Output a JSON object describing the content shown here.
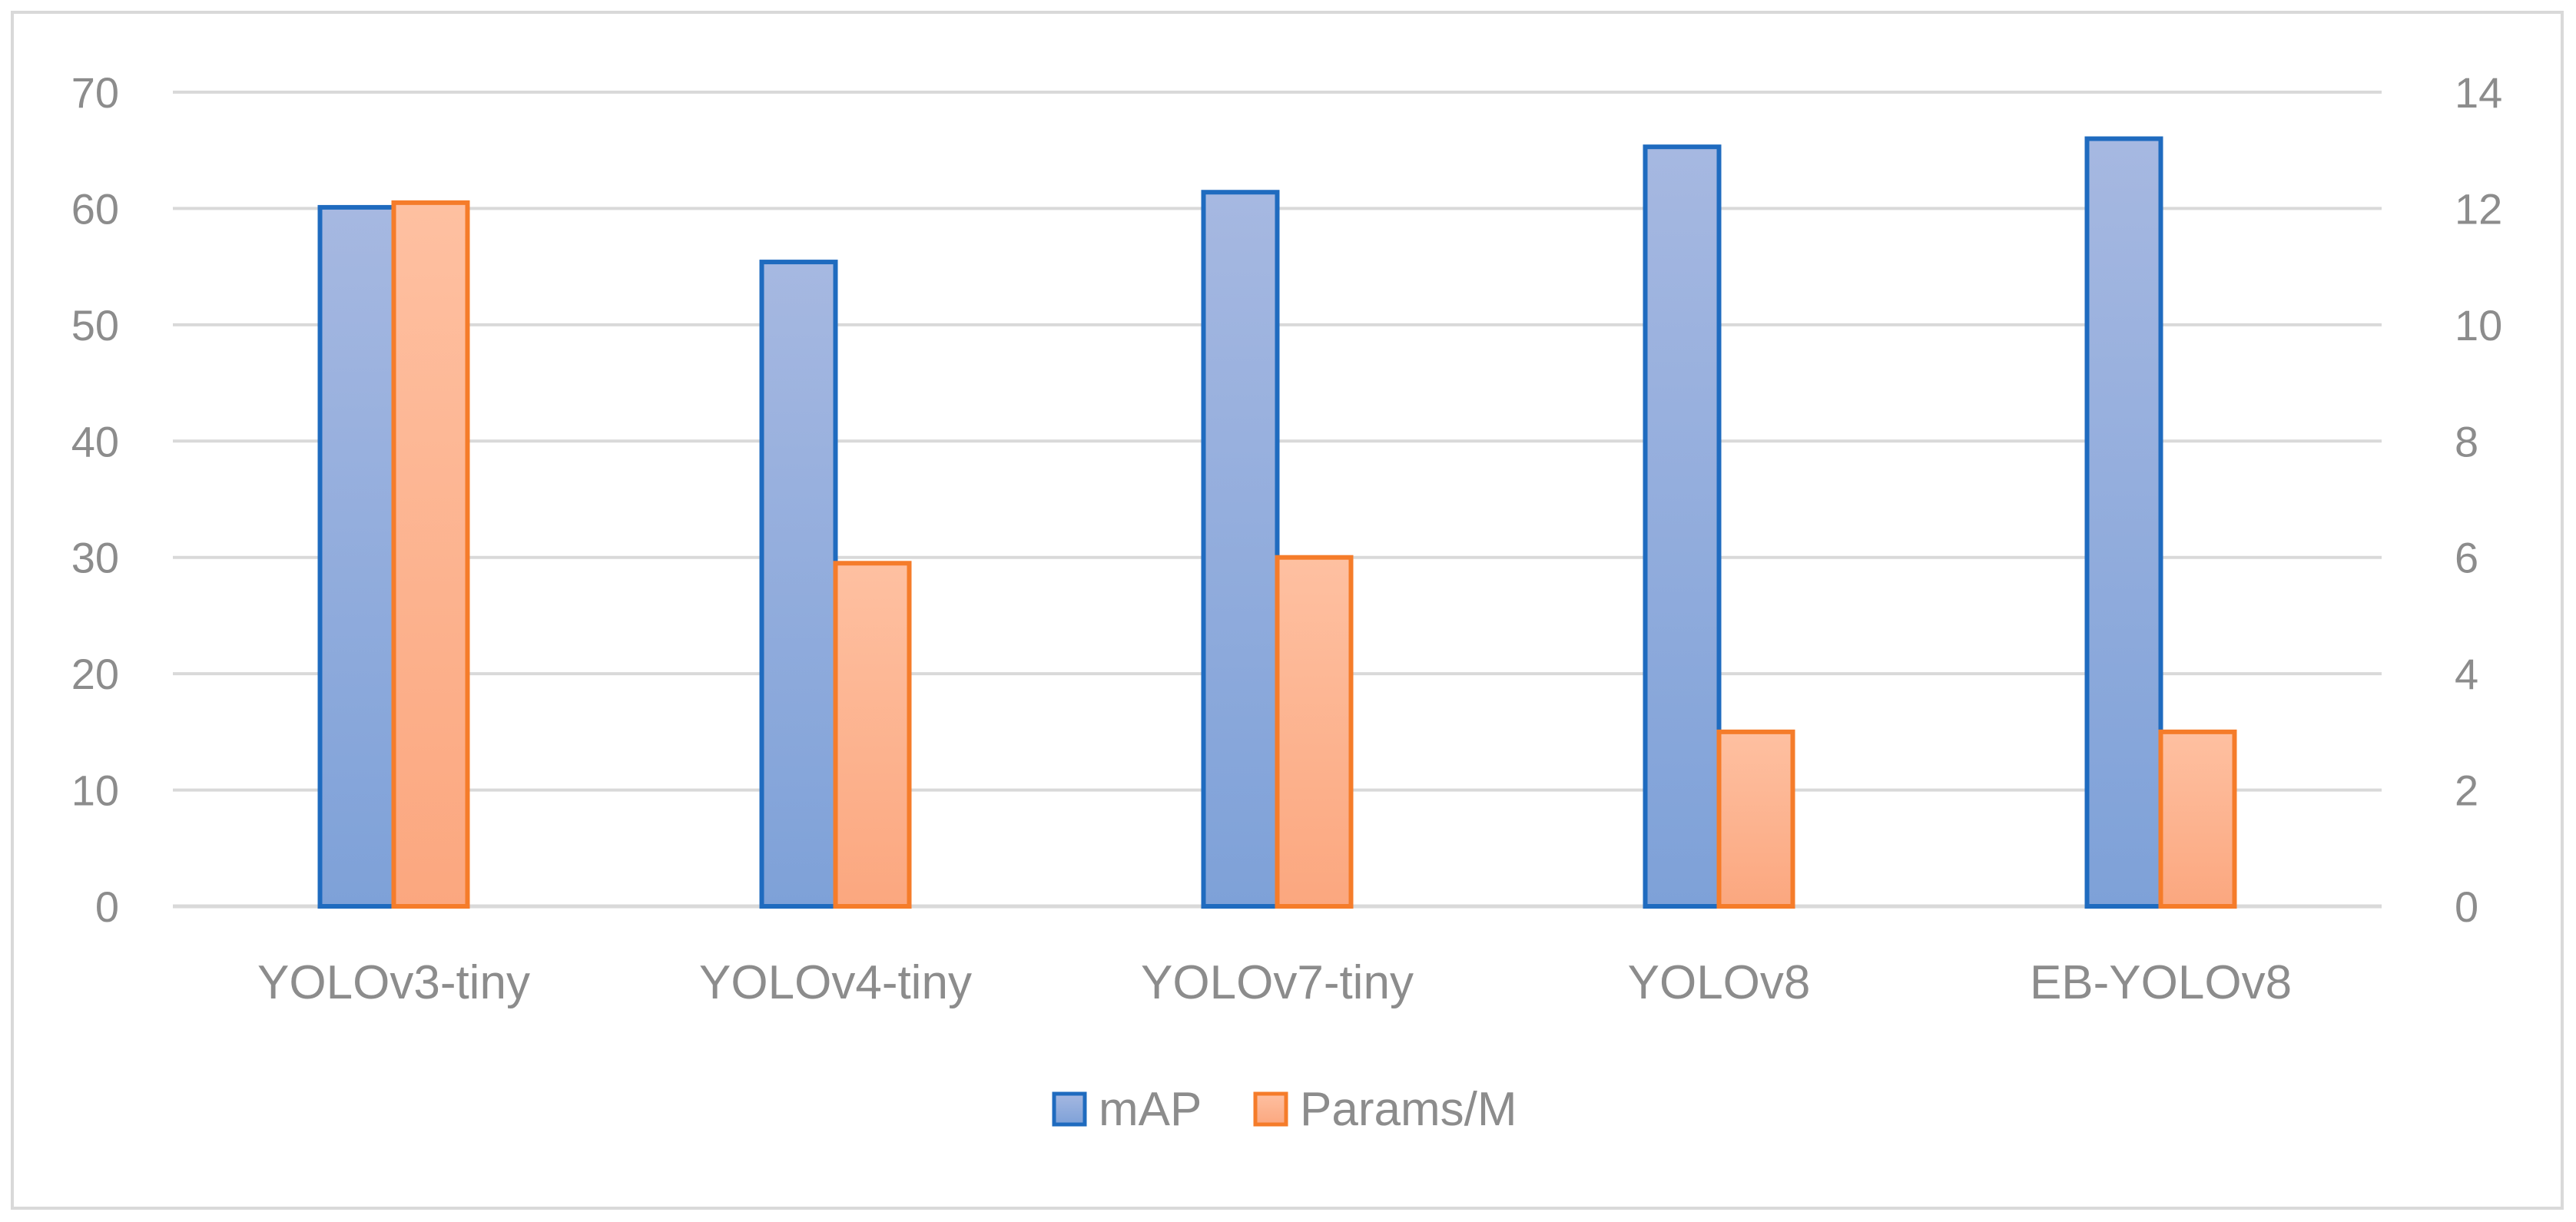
{
  "chart_data": {
    "type": "bar",
    "title": "",
    "categories": [
      "YOLOv3-tiny",
      "YOLOv4-tiny",
      "YOLOv7-tiny",
      "YOLOv8",
      "EB-YOLOv8"
    ],
    "series": [
      {
        "name": "mAP",
        "axis": "left",
        "values": [
          60.1,
          55.4,
          61.4,
          65.3,
          66.0
        ],
        "color": "#1f6bbf",
        "fill_top": "#a6b8e1",
        "fill_bottom": "#7ea1d8"
      },
      {
        "name": "Params/M",
        "axis": "right",
        "values": [
          12.1,
          5.9,
          6.0,
          3.0,
          3.0
        ],
        "color": "#f57c2a",
        "fill_top": "#fec0a1",
        "fill_bottom": "#fba77f"
      }
    ],
    "y_left": {
      "label": "",
      "ylim": [
        0,
        70
      ],
      "ticks": [
        "0",
        "10",
        "20",
        "30",
        "40",
        "50",
        "60",
        "70"
      ]
    },
    "y_right": {
      "label": "",
      "ylim": [
        0,
        14
      ],
      "ticks": [
        "0",
        "2",
        "4",
        "6",
        "8",
        "10",
        "12",
        "14"
      ]
    },
    "grid": true,
    "legend_position": "bottom",
    "gridline_color": "#d9d9d9",
    "text_color": "#8c8c8c"
  }
}
